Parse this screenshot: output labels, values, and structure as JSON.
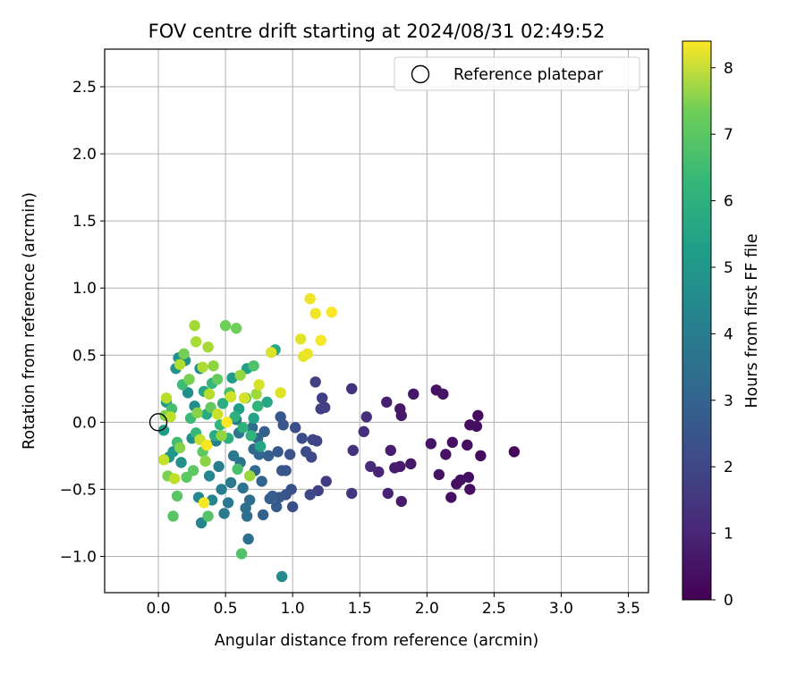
{
  "chart_data": {
    "type": "scatter",
    "title": "FOV centre drift starting at 2024/08/31 02:49:52",
    "xlabel": "Angular distance from reference (arcmin)",
    "ylabel": "Rotation from reference (arcmin)",
    "xlim": [
      -0.4,
      3.65
    ],
    "ylim": [
      -1.27,
      2.78
    ],
    "xticks": [
      0.0,
      0.5,
      1.0,
      1.5,
      2.0,
      2.5,
      3.0,
      3.5
    ],
    "xtick_labels": [
      "0.0",
      "0.5",
      "1.0",
      "1.5",
      "2.0",
      "2.5",
      "3.0",
      "3.5"
    ],
    "yticks": [
      -1.0,
      -0.5,
      0.0,
      0.5,
      1.0,
      1.5,
      2.0,
      2.5
    ],
    "ytick_labels": [
      "−1.0",
      "−0.5",
      "0.0",
      "0.5",
      "1.0",
      "1.5",
      "2.0",
      "2.5"
    ],
    "grid": true,
    "legend": {
      "position": "top-right",
      "entries": [
        "Reference platepar"
      ]
    },
    "reference_point": {
      "x": 0.0,
      "y": 0.0,
      "label": "Reference platepar"
    },
    "colorbar": {
      "label": "Hours from first FF file",
      "range": [
        0,
        8.4
      ],
      "ticks": [
        0,
        1,
        2,
        3,
        4,
        5,
        6,
        7,
        8
      ],
      "tick_labels": [
        "0",
        "1",
        "2",
        "3",
        "4",
        "5",
        "6",
        "7",
        "8"
      ],
      "colormap": "viridis"
    },
    "points": [
      {
        "x": 2.65,
        "y": -0.22,
        "t": 0.2
      },
      {
        "x": 2.4,
        "y": -0.25,
        "t": 0.2
      },
      {
        "x": 2.38,
        "y": 0.05,
        "t": 0.25
      },
      {
        "x": 2.37,
        "y": -0.03,
        "t": 0.3
      },
      {
        "x": 2.32,
        "y": -0.02,
        "t": 0.3
      },
      {
        "x": 2.3,
        "y": -0.17,
        "t": 0.3
      },
      {
        "x": 2.31,
        "y": -0.41,
        "t": 0.3
      },
      {
        "x": 2.32,
        "y": -0.5,
        "t": 0.3
      },
      {
        "x": 2.25,
        "y": -0.43,
        "t": 0.35
      },
      {
        "x": 2.22,
        "y": -0.46,
        "t": 0.35
      },
      {
        "x": 2.18,
        "y": -0.56,
        "t": 0.35
      },
      {
        "x": 2.19,
        "y": -0.15,
        "t": 0.35
      },
      {
        "x": 2.14,
        "y": -0.24,
        "t": 0.4
      },
      {
        "x": 2.12,
        "y": 0.21,
        "t": 0.4
      },
      {
        "x": 2.07,
        "y": 0.24,
        "t": 0.4
      },
      {
        "x": 2.09,
        "y": -0.39,
        "t": 0.4
      },
      {
        "x": 2.03,
        "y": -0.16,
        "t": 0.45
      },
      {
        "x": 1.9,
        "y": 0.21,
        "t": 0.5
      },
      {
        "x": 1.88,
        "y": -0.31,
        "t": 0.5
      },
      {
        "x": 1.8,
        "y": 0.1,
        "t": 0.55
      },
      {
        "x": 1.81,
        "y": 0.05,
        "t": 0.55
      },
      {
        "x": 1.81,
        "y": -0.59,
        "t": 0.6
      },
      {
        "x": 1.8,
        "y": -0.33,
        "t": 0.6
      },
      {
        "x": 1.76,
        "y": -0.34,
        "t": 0.65
      },
      {
        "x": 1.73,
        "y": -0.21,
        "t": 0.7
      },
      {
        "x": 1.7,
        "y": 0.15,
        "t": 0.75
      },
      {
        "x": 1.71,
        "y": -0.53,
        "t": 0.8
      },
      {
        "x": 1.64,
        "y": -0.37,
        "t": 0.85
      },
      {
        "x": 1.58,
        "y": -0.33,
        "t": 1.0
      },
      {
        "x": 1.55,
        "y": 0.04,
        "t": 1.1
      },
      {
        "x": 1.53,
        "y": -0.07,
        "t": 1.15
      },
      {
        "x": 1.45,
        "y": -0.21,
        "t": 1.2
      },
      {
        "x": 1.44,
        "y": 0.25,
        "t": 1.2
      },
      {
        "x": 1.44,
        "y": -0.53,
        "t": 1.3
      },
      {
        "x": 1.25,
        "y": -0.44,
        "t": 1.5
      },
      {
        "x": 1.24,
        "y": 0.11,
        "t": 1.55
      },
      {
        "x": 1.22,
        "y": 0.18,
        "t": 1.55
      },
      {
        "x": 1.21,
        "y": 0.1,
        "t": 1.6
      },
      {
        "x": 1.19,
        "y": -0.51,
        "t": 1.6
      },
      {
        "x": 1.17,
        "y": 0.3,
        "t": 1.65
      },
      {
        "x": 1.18,
        "y": -0.14,
        "t": 1.7
      },
      {
        "x": 1.15,
        "y": -0.13,
        "t": 1.75
      },
      {
        "x": 1.14,
        "y": -0.26,
        "t": 1.8
      },
      {
        "x": 1.13,
        "y": -0.54,
        "t": 1.8
      },
      {
        "x": 1.1,
        "y": -0.22,
        "t": 1.9
      },
      {
        "x": 1.07,
        "y": -0.12,
        "t": 1.95
      },
      {
        "x": 1.02,
        "y": -0.04,
        "t": 2.0
      },
      {
        "x": 1.0,
        "y": -0.63,
        "t": 2.0
      },
      {
        "x": 0.99,
        "y": -0.5,
        "t": 2.05
      },
      {
        "x": 0.98,
        "y": -0.24,
        "t": 2.1
      },
      {
        "x": 0.95,
        "y": -0.54,
        "t": 2.15
      },
      {
        "x": 0.95,
        "y": -0.36,
        "t": 2.2
      },
      {
        "x": 0.93,
        "y": -0.02,
        "t": 2.2
      },
      {
        "x": 0.92,
        "y": -0.36,
        "t": 2.25
      },
      {
        "x": 0.91,
        "y": 0.04,
        "t": 2.3
      },
      {
        "x": 0.9,
        "y": -0.56,
        "t": 2.3
      },
      {
        "x": 0.89,
        "y": -0.22,
        "t": 2.35
      },
      {
        "x": 0.88,
        "y": -0.63,
        "t": 2.4
      },
      {
        "x": 0.85,
        "y": -0.55,
        "t": 2.45
      },
      {
        "x": 0.83,
        "y": -0.57,
        "t": 2.5
      },
      {
        "x": 0.82,
        "y": -0.25,
        "t": 2.55
      },
      {
        "x": 0.79,
        "y": -0.07,
        "t": 2.6
      },
      {
        "x": 0.78,
        "y": -0.69,
        "t": 2.65
      },
      {
        "x": 0.77,
        "y": -0.44,
        "t": 2.7
      },
      {
        "x": 0.75,
        "y": -0.24,
        "t": 2.75
      },
      {
        "x": 0.74,
        "y": -0.12,
        "t": 2.8
      },
      {
        "x": 0.72,
        "y": -0.36,
        "t": 2.85
      },
      {
        "x": 0.71,
        "y": -0.2,
        "t": 2.9
      },
      {
        "x": 0.7,
        "y": -0.04,
        "t": 2.95
      },
      {
        "x": 0.68,
        "y": -0.58,
        "t": 3.0
      },
      {
        "x": 0.66,
        "y": -0.7,
        "t": 3.0
      },
      {
        "x": 0.67,
        "y": -0.87,
        "t": 3.05
      },
      {
        "x": 0.65,
        "y": -0.64,
        "t": 3.1
      },
      {
        "x": 0.63,
        "y": -0.49,
        "t": 3.15
      },
      {
        "x": 0.61,
        "y": -0.3,
        "t": 3.2
      },
      {
        "x": 0.6,
        "y": -0.08,
        "t": 3.25
      },
      {
        "x": 0.58,
        "y": 0.02,
        "t": 3.3
      },
      {
        "x": 0.56,
        "y": -0.25,
        "t": 3.35
      },
      {
        "x": 0.54,
        "y": -0.45,
        "t": 3.4
      },
      {
        "x": 0.52,
        "y": -0.6,
        "t": 3.45
      },
      {
        "x": 0.49,
        "y": -0.68,
        "t": 3.5
      },
      {
        "x": 0.47,
        "y": -0.5,
        "t": 3.55
      },
      {
        "x": 0.45,
        "y": -0.33,
        "t": 3.6
      },
      {
        "x": 0.43,
        "y": -0.14,
        "t": 3.7
      },
      {
        "x": 0.4,
        "y": -0.58,
        "t": 3.8
      },
      {
        "x": 0.38,
        "y": -0.4,
        "t": 3.85
      },
      {
        "x": 0.32,
        "y": -0.75,
        "t": 3.9
      },
      {
        "x": 0.3,
        "y": -0.56,
        "t": 3.95
      },
      {
        "x": 0.92,
        "y": -1.15,
        "t": 4.0
      },
      {
        "x": 0.31,
        "y": 0.4,
        "t": 4.0
      },
      {
        "x": 0.27,
        "y": 0.12,
        "t": 4.05
      },
      {
        "x": 0.25,
        "y": -0.12,
        "t": 4.1
      },
      {
        "x": 0.22,
        "y": 0.22,
        "t": 4.15
      },
      {
        "x": 0.2,
        "y": 0.46,
        "t": 4.2
      },
      {
        "x": 0.17,
        "y": -0.3,
        "t": 4.25
      },
      {
        "x": 0.15,
        "y": 0.48,
        "t": 4.3
      },
      {
        "x": 0.13,
        "y": 0.4,
        "t": 4.35
      },
      {
        "x": 0.11,
        "y": -0.22,
        "t": 4.4
      },
      {
        "x": 0.08,
        "y": -0.26,
        "t": 4.45
      },
      {
        "x": 0.06,
        "y": 0.15,
        "t": 4.5
      },
      {
        "x": 0.04,
        "y": -0.06,
        "t": 4.6
      },
      {
        "x": 0.55,
        "y": 0.33,
        "t": 4.6
      },
      {
        "x": 0.6,
        "y": 0.1,
        "t": 4.7
      },
      {
        "x": 0.66,
        "y": 0.4,
        "t": 4.75
      },
      {
        "x": 0.71,
        "y": 0.03,
        "t": 4.8
      },
      {
        "x": 0.76,
        "y": -0.18,
        "t": 4.9
      },
      {
        "x": 0.81,
        "y": 0.15,
        "t": 4.95
      },
      {
        "x": 0.87,
        "y": 0.54,
        "t": 5.0
      },
      {
        "x": 0.34,
        "y": 0.23,
        "t": 5.0
      },
      {
        "x": 0.36,
        "y": 0.06,
        "t": 5.1
      },
      {
        "x": 0.42,
        "y": -0.1,
        "t": 5.15
      },
      {
        "x": 0.48,
        "y": 0.14,
        "t": 5.2
      },
      {
        "x": 0.52,
        "y": -0.12,
        "t": 5.25
      },
      {
        "x": 0.57,
        "y": 0.04,
        "t": 5.3
      },
      {
        "x": 0.63,
        "y": -0.04,
        "t": 5.35
      },
      {
        "x": 0.69,
        "y": -0.1,
        "t": 5.4
      },
      {
        "x": 0.74,
        "y": 0.12,
        "t": 5.45
      },
      {
        "x": 0.46,
        "y": -0.02,
        "t": 5.5
      },
      {
        "x": 0.4,
        "y": 0.29,
        "t": 5.55
      },
      {
        "x": 0.28,
        "y": -0.08,
        "t": 5.6
      },
      {
        "x": 0.24,
        "y": 0.03,
        "t": 5.7
      },
      {
        "x": 0.18,
        "y": 0.28,
        "t": 5.75
      },
      {
        "x": 0.14,
        "y": -0.15,
        "t": 5.8
      },
      {
        "x": 0.1,
        "y": 0.1,
        "t": 5.85
      },
      {
        "x": 0.53,
        "y": 0.22,
        "t": 5.9
      },
      {
        "x": 0.59,
        "y": -0.35,
        "t": 5.95
      },
      {
        "x": 0.65,
        "y": 0.18,
        "t": 6.0
      },
      {
        "x": 0.71,
        "y": 0.42,
        "t": 6.0
      },
      {
        "x": 0.62,
        "y": -0.98,
        "t": 6.05
      },
      {
        "x": 0.37,
        "y": -0.7,
        "t": 6.1
      },
      {
        "x": 0.11,
        "y": -0.7,
        "t": 6.15
      },
      {
        "x": 0.14,
        "y": -0.55,
        "t": 6.2
      },
      {
        "x": 0.21,
        "y": -0.41,
        "t": 6.25
      },
      {
        "x": 0.26,
        "y": -0.36,
        "t": 6.3
      },
      {
        "x": 0.33,
        "y": -0.22,
        "t": 6.3
      },
      {
        "x": 0.39,
        "y": 0.11,
        "t": 6.35
      },
      {
        "x": 0.44,
        "y": 0.32,
        "t": 6.4
      },
      {
        "x": 0.5,
        "y": 0.72,
        "t": 6.5
      },
      {
        "x": 0.58,
        "y": 0.7,
        "t": 6.55
      },
      {
        "x": 0.19,
        "y": 0.51,
        "t": 6.6
      },
      {
        "x": 0.23,
        "y": 0.32,
        "t": 6.65
      },
      {
        "x": 0.07,
        "y": -0.4,
        "t": 6.7
      },
      {
        "x": 0.05,
        "y": 0.05,
        "t": 6.75
      },
      {
        "x": 0.16,
        "y": -0.19,
        "t": 6.8
      },
      {
        "x": 0.29,
        "y": 0.07,
        "t": 6.85
      },
      {
        "x": 0.35,
        "y": -0.29,
        "t": 6.9
      },
      {
        "x": 0.41,
        "y": 0.42,
        "t": 6.95
      },
      {
        "x": 0.47,
        "y": -0.1,
        "t": 7.0
      },
      {
        "x": 0.61,
        "y": 0.35,
        "t": 7.05
      },
      {
        "x": 0.68,
        "y": -0.4,
        "t": 7.1
      },
      {
        "x": 0.73,
        "y": 0.21,
        "t": 7.15
      },
      {
        "x": 0.27,
        "y": 0.72,
        "t": 7.2
      },
      {
        "x": 0.37,
        "y": 0.56,
        "t": 7.25
      },
      {
        "x": 0.28,
        "y": 0.6,
        "t": 7.3
      },
      {
        "x": 0.33,
        "y": 0.41,
        "t": 7.35
      },
      {
        "x": 0.16,
        "y": 0.43,
        "t": 7.4
      },
      {
        "x": 0.38,
        "y": 0.21,
        "t": 7.45
      },
      {
        "x": 0.06,
        "y": 0.18,
        "t": 7.5
      },
      {
        "x": 0.09,
        "y": 0.04,
        "t": 7.55
      },
      {
        "x": 0.12,
        "y": -0.42,
        "t": 7.6
      },
      {
        "x": 0.04,
        "y": -0.28,
        "t": 7.65
      },
      {
        "x": 0.31,
        "y": -0.13,
        "t": 7.7
      },
      {
        "x": 0.44,
        "y": 0.06,
        "t": 7.75
      },
      {
        "x": 0.54,
        "y": 0.19,
        "t": 7.8
      },
      {
        "x": 0.64,
        "y": 0.18,
        "t": 7.85
      },
      {
        "x": 0.75,
        "y": 0.28,
        "t": 7.9
      },
      {
        "x": 0.84,
        "y": 0.52,
        "t": 7.95
      },
      {
        "x": 0.91,
        "y": 0.22,
        "t": 8.0
      },
      {
        "x": 1.06,
        "y": 0.62,
        "t": 8.05
      },
      {
        "x": 1.08,
        "y": 0.49,
        "t": 8.1
      },
      {
        "x": 1.11,
        "y": 0.51,
        "t": 8.15
      },
      {
        "x": 1.13,
        "y": 0.92,
        "t": 8.2
      },
      {
        "x": 1.17,
        "y": 0.81,
        "t": 8.25
      },
      {
        "x": 1.21,
        "y": 0.61,
        "t": 8.3
      },
      {
        "x": 1.29,
        "y": 0.82,
        "t": 8.35
      },
      {
        "x": 0.34,
        "y": -0.6,
        "t": 8.3
      },
      {
        "x": 0.51,
        "y": 0.0,
        "t": 8.35
      },
      {
        "x": 0.36,
        "y": -0.17,
        "t": 8.3
      }
    ]
  }
}
